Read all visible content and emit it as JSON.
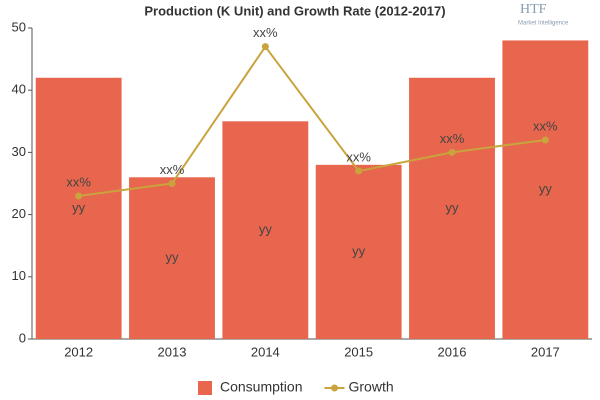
{
  "chart_data": {
    "type": "bar-line",
    "title": "Production (K Unit) and Growth Rate (2012-2017)",
    "watermark": {
      "text": "HTF",
      "subtitle": "Market Intelligence"
    },
    "categories": [
      "2012",
      "2013",
      "2014",
      "2015",
      "2016",
      "2017"
    ],
    "series": [
      {
        "name": "Consumption",
        "type": "bar",
        "color": "#e8664d",
        "values": [
          42,
          26,
          35,
          28,
          42,
          48
        ],
        "value_labels": [
          "yy",
          "yy",
          "yy",
          "yy",
          "yy",
          "yy"
        ]
      },
      {
        "name": "Growth",
        "type": "line",
        "color": "#c9a43d",
        "values": [
          23,
          25,
          47,
          27,
          30,
          32
        ],
        "value_labels": [
          "xx%",
          "xx%",
          "xx%",
          "xx%",
          "xx%",
          "xx%"
        ]
      }
    ],
    "ylim": [
      0,
      50
    ],
    "yticks": [
      0,
      10,
      20,
      30,
      40,
      50
    ],
    "grid": false,
    "legend": "bottom"
  }
}
